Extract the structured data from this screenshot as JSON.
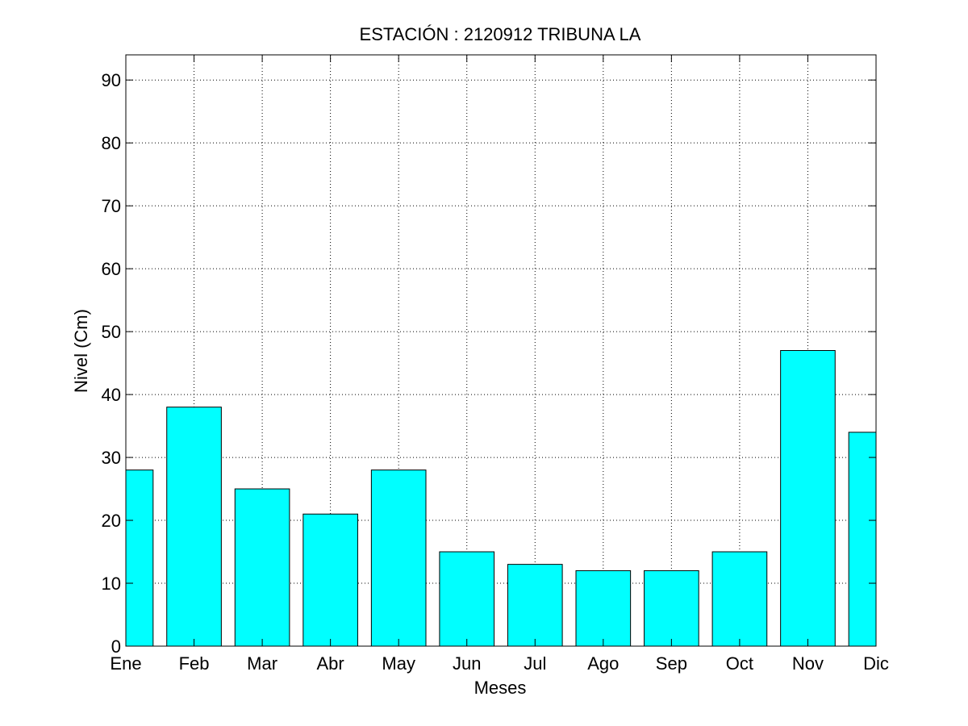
{
  "chart_data": {
    "type": "bar",
    "title": "ESTACIÓN :  2120912  TRIBUNA LA",
    "xlabel": "Meses",
    "ylabel": "Nivel (Cm)",
    "categories": [
      "Ene",
      "Feb",
      "Mar",
      "Abr",
      "May",
      "Jun",
      "Jul",
      "Ago",
      "Sep",
      "Oct",
      "Nov",
      "Dic"
    ],
    "values": [
      28,
      38,
      25,
      21,
      28,
      15,
      13,
      12,
      12,
      15,
      47,
      34
    ],
    "ylim": [
      0,
      94
    ],
    "yticks": [
      0,
      10,
      20,
      30,
      40,
      50,
      60,
      70,
      80,
      90
    ],
    "grid": true,
    "bar_color": "#00ffff"
  }
}
